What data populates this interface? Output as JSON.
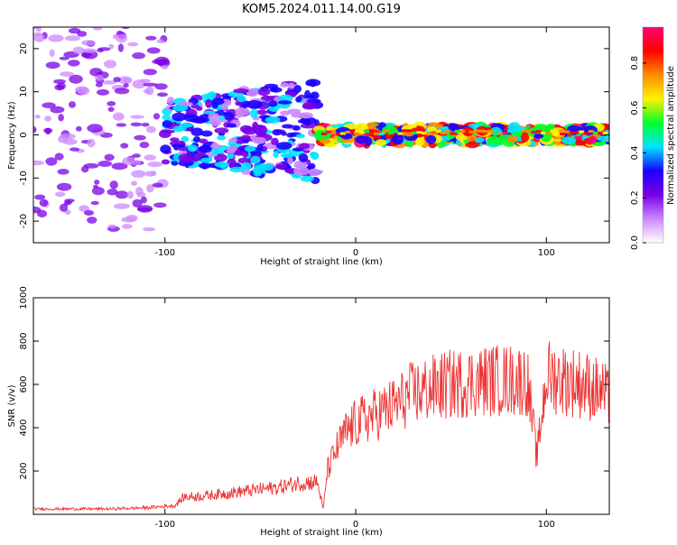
{
  "title": "KOM5.2024.011.14.00.G19",
  "colorbar": {
    "label": "Normalized spectral amplitude",
    "ticks": [
      "0.0",
      "0.2",
      "0.4",
      "0.6",
      "0.8"
    ],
    "tick_values": [
      0,
      0.2,
      0.4,
      0.6,
      0.8
    ],
    "range": [
      0,
      0.96
    ],
    "colors": [
      "#ffffff",
      "#cc88ff",
      "#7a00e6",
      "#1a00ff",
      "#00e5ff",
      "#00ff2a",
      "#fff200",
      "#ff8c00",
      "#ff0000",
      "#ff0077"
    ]
  },
  "chart_data": [
    {
      "type": "heatmap",
      "xlabel": "Height of straight line (km)",
      "ylabel": "Frequency (Hz)",
      "xlim": [
        -169,
        133
      ],
      "ylim": [
        -25,
        25
      ],
      "xticks": [
        -100,
        0,
        100
      ],
      "yticks": [
        -20,
        -10,
        0,
        10,
        20
      ],
      "bands": [
        {
          "x_range": [
            -169,
            -100
          ],
          "y_spread": 25,
          "amplitude": [
            0.1,
            0.25
          ],
          "description_level": "sparse low"
        },
        {
          "x_range": [
            -100,
            -20
          ],
          "y_spread": 12,
          "amplitude": [
            0.1,
            0.45
          ],
          "description_level": "dense medium"
        },
        {
          "x_range": [
            -20,
            133
          ],
          "y_center": 0,
          "y_spread": 2,
          "amplitude": [
            0.3,
            0.95
          ],
          "description_level": "strong ridge"
        }
      ]
    },
    {
      "type": "line",
      "xlabel": "Height of straight line (km)",
      "ylabel": "SNR (v/v)",
      "xlim": [
        -169,
        133
      ],
      "ylim": [
        0,
        1000
      ],
      "xticks": [
        -100,
        0,
        100
      ],
      "yticks": [
        200,
        400,
        600,
        800,
        1000
      ],
      "series": [
        {
          "color": "#ee3333",
          "x": [
            -169,
            -150,
            -130,
            -110,
            -95,
            -90,
            -80,
            -70,
            -60,
            -50,
            -40,
            -30,
            -20,
            -17,
            -15,
            -10,
            -5,
            0,
            5,
            10,
            20,
            30,
            40,
            50,
            60,
            70,
            80,
            90,
            95,
            100,
            110,
            120,
            130,
            133
          ],
          "y": [
            25,
            25,
            25,
            30,
            40,
            80,
            85,
            95,
            105,
            115,
            125,
            145,
            150,
            20,
            200,
            300,
            380,
            420,
            440,
            460,
            500,
            560,
            580,
            600,
            610,
            620,
            620,
            620,
            260,
            640,
            620,
            600,
            560,
            520
          ]
        }
      ]
    }
  ]
}
